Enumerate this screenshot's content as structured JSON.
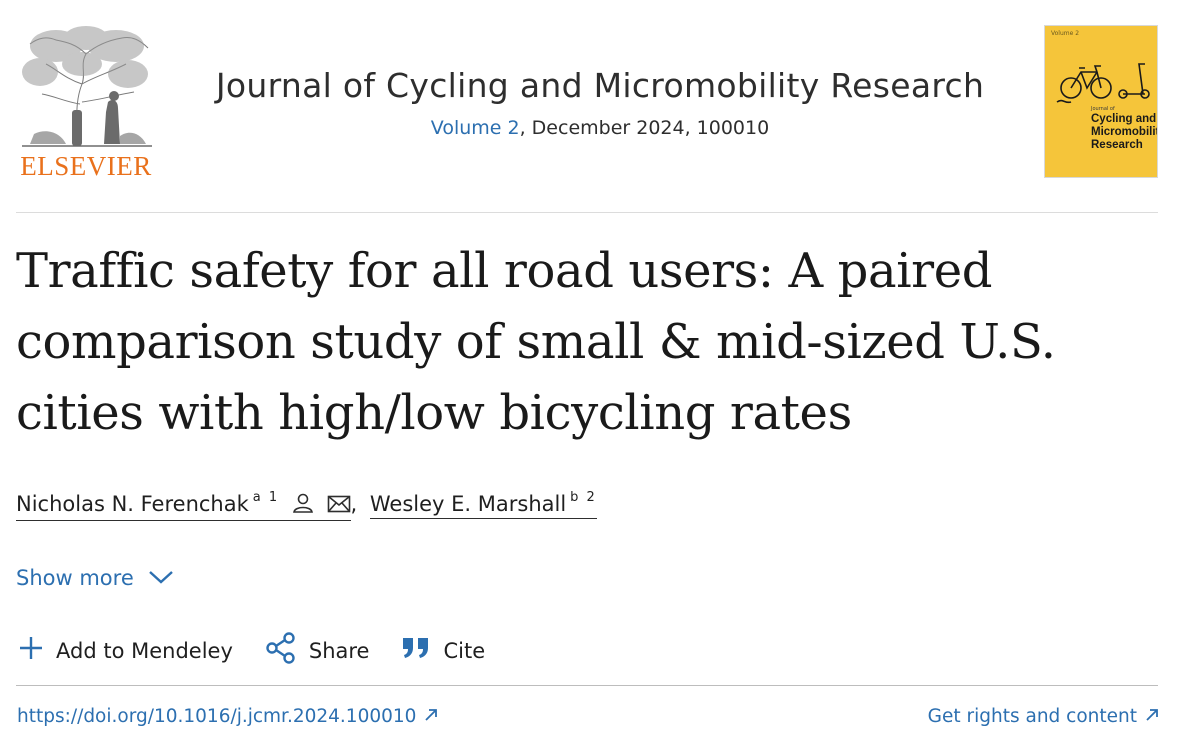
{
  "publisher": {
    "name": "ELSEVIER",
    "logo_icon": "elsevier-tree-icon"
  },
  "journal": {
    "title": "Journal of Cycling and Micromobility Research",
    "volume_link": "Volume 2",
    "issue_info": ", December 2024, 100010"
  },
  "cover": {
    "small_text": "Volume 2",
    "journal_word": "Journal of",
    "title": "Cycling and Micromobility Research",
    "background": "#f5c53a"
  },
  "article": {
    "title": "Traffic safety for all road users: A paired comparison study of small & mid-sized U.S. cities with high/low bicycling rates"
  },
  "authors": [
    {
      "name": "Nicholas N. Ferenchak",
      "affil": "a 1",
      "icons": [
        "person-icon",
        "mail-icon"
      ]
    },
    {
      "name": "Wesley E. Marshall",
      "affil": "b 2"
    }
  ],
  "author_separator": ",",
  "show_more": {
    "label": "Show more",
    "icon": "chevron-down-icon"
  },
  "actions": {
    "mendeley": {
      "label": "Add to Mendeley",
      "icon": "plus-icon"
    },
    "share": {
      "label": "Share",
      "icon": "share-icon"
    },
    "cite": {
      "label": "Cite",
      "icon": "quote-icon"
    }
  },
  "footer": {
    "doi": "https://doi.org/10.1016/j.jcmr.2024.100010",
    "rights": "Get rights and content",
    "link_icon": "external-arrow-icon"
  },
  "colors": {
    "link": "#2c6fb0",
    "publisher_orange": "#e9711c",
    "text": "#1f1f1f"
  }
}
